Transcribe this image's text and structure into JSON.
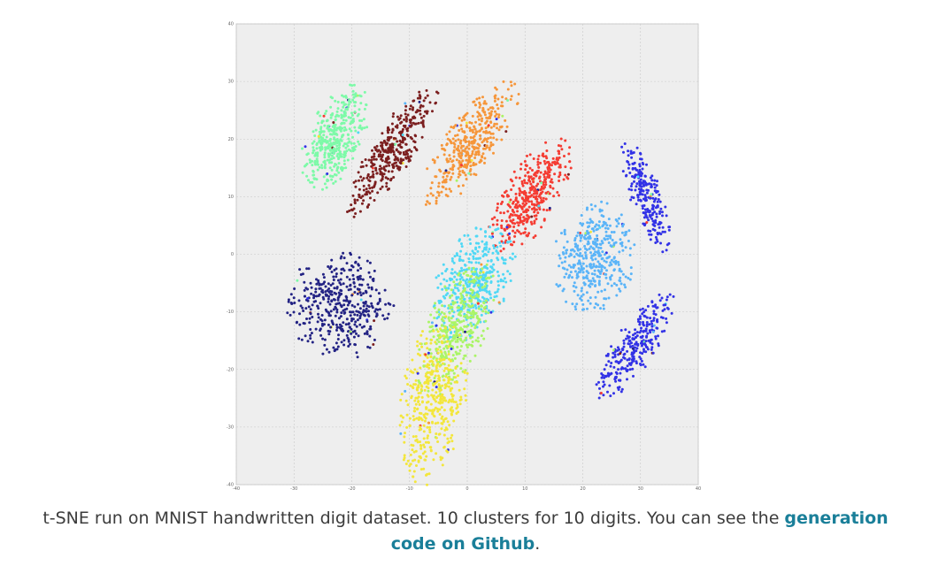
{
  "caption": {
    "text": "t-SNE run on MNIST handwritten digit dataset. 10 clusters for 10 digits. You can see the ",
    "link_text": "generation code on Github",
    "end": "."
  },
  "chart_data": {
    "type": "scatter",
    "title": "",
    "xlabel": "",
    "ylabel": "",
    "xlim": [
      -40,
      40
    ],
    "ylim": [
      -40,
      40
    ],
    "x_ticks": [
      -40,
      -30,
      -20,
      -10,
      0,
      10,
      20,
      30,
      40
    ],
    "y_ticks": [
      -40,
      -30,
      -20,
      -10,
      0,
      10,
      20,
      30,
      40
    ],
    "grid": true,
    "legend": "none",
    "clusters": [
      {
        "color": "#7dfaa8",
        "center": [
          -23,
          20
        ],
        "spread": [
          4.2,
          9
        ],
        "angle": 65,
        "count": 420
      },
      {
        "color": "#7b1f1f",
        "center": [
          -13,
          18
        ],
        "spread": [
          3.2,
          12
        ],
        "angle": 58,
        "count": 380
      },
      {
        "color": "#f6963a",
        "center": [
          0.5,
          19
        ],
        "spread": [
          4.0,
          11.5
        ],
        "angle": 55,
        "count": 400
      },
      {
        "color": "#f53c32",
        "center": [
          11,
          10
        ],
        "spread": [
          4.3,
          10
        ],
        "angle": 58,
        "count": 400
      },
      {
        "color": "#5ab4f8",
        "center": [
          22,
          -0.5
        ],
        "spread": [
          6.2,
          8.5
        ],
        "angle": 80,
        "count": 400
      },
      {
        "color": "#3232e6",
        "center": [
          31,
          10
        ],
        "spread": [
          2.4,
          9
        ],
        "angle": 110,
        "count": 230
      },
      {
        "color": "#3232e6",
        "center": [
          29,
          -16
        ],
        "spread": [
          3.2,
          10
        ],
        "angle": 55,
        "count": 280
      },
      {
        "color": "#50d8f5",
        "center": [
          1,
          -5
        ],
        "spread": [
          9.5,
          5.5
        ],
        "angle": -25,
        "count": 420
      },
      {
        "color": "#232384",
        "center": [
          -22,
          -9
        ],
        "spread": [
          8.2,
          8.5
        ],
        "angle": 0,
        "count": 420
      },
      {
        "color": "#aaf566",
        "center": [
          -2,
          -13
        ],
        "spread": [
          11,
          4.5
        ],
        "angle": -22,
        "count": 380
      },
      {
        "color": "#f3e63b",
        "center": [
          -6,
          -25.5
        ],
        "spread": [
          13,
          5
        ],
        "angle": -8,
        "count": 420
      }
    ]
  }
}
